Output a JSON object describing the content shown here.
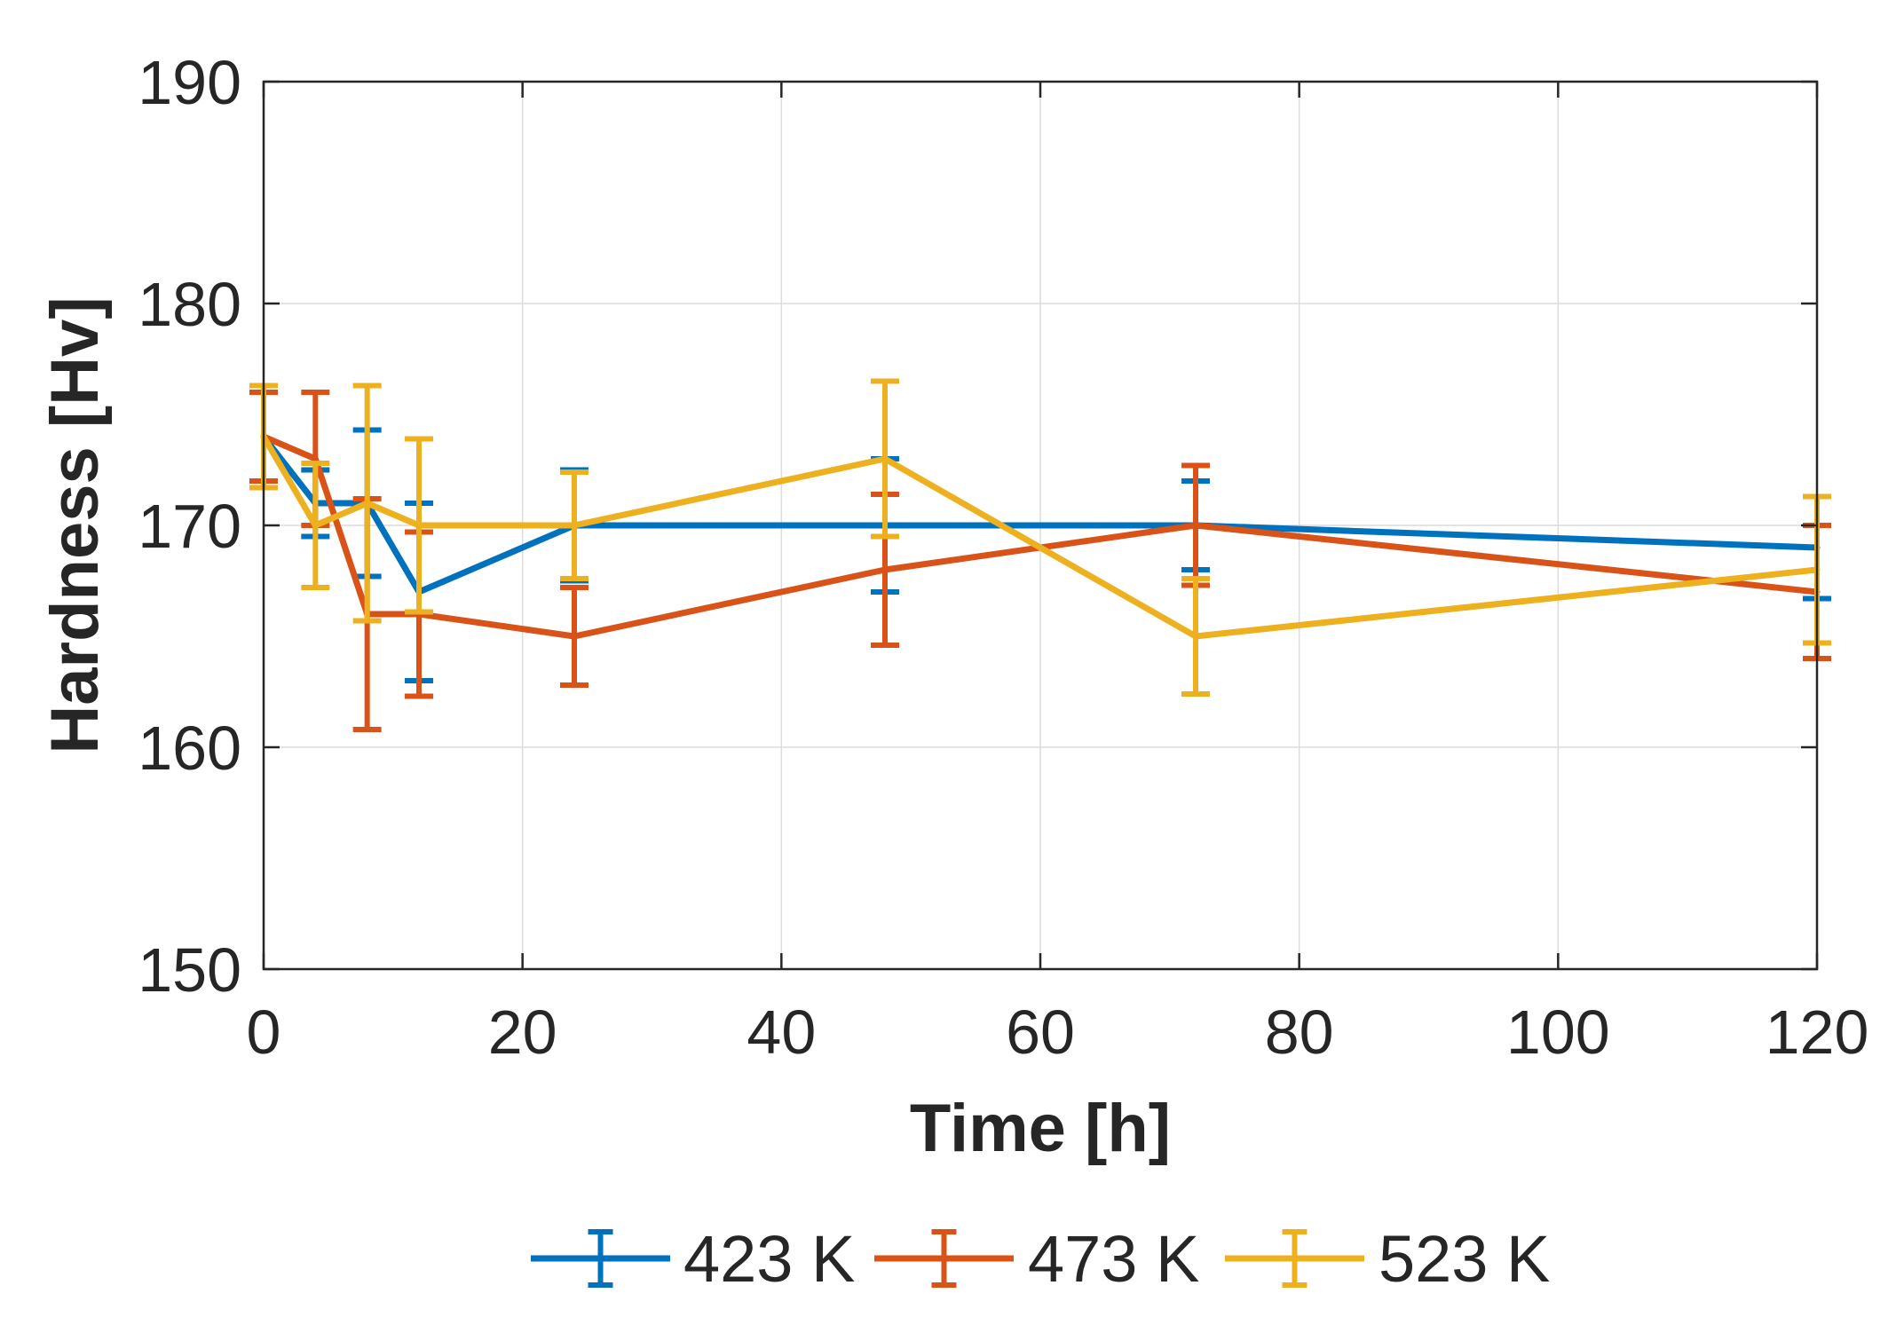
{
  "chart_data": {
    "type": "line",
    "title": "",
    "xlabel": "Time [h]",
    "ylabel": "Hardness [Hv]",
    "xlim": [
      0,
      120
    ],
    "ylim": [
      150,
      190
    ],
    "xticks": [
      0,
      20,
      40,
      60,
      80,
      100,
      120
    ],
    "yticks": [
      150,
      160,
      170,
      180,
      190
    ],
    "grid": true,
    "legend_position": "bottom",
    "x": [
      0,
      4,
      8,
      12,
      24,
      48,
      72,
      120
    ],
    "series": [
      {
        "name": "423 K",
        "color": "#0072BD",
        "values": [
          174,
          171,
          171,
          167,
          170,
          170,
          170,
          169
        ],
        "err_low": [
          2,
          1.5,
          3.3,
          4,
          2.5,
          3,
          2,
          2.3
        ],
        "err_high": [
          2,
          1.5,
          3.3,
          4,
          2.5,
          3,
          2,
          2.3
        ]
      },
      {
        "name": "473 K",
        "color": "#D95319",
        "values": [
          174,
          173,
          166,
          166,
          165,
          168,
          170,
          167
        ],
        "err_low": [
          2,
          3,
          5.2,
          3.7,
          2.2,
          3.4,
          2.7,
          3
        ],
        "err_high": [
          2,
          3,
          5.2,
          3.7,
          2.2,
          3.4,
          2.7,
          3
        ]
      },
      {
        "name": "523 K",
        "color": "#EDB120",
        "values": [
          174,
          170,
          171,
          170,
          170,
          173,
          165,
          168
        ],
        "err_low": [
          2.3,
          2.8,
          5.3,
          3.9,
          2.4,
          3.5,
          2.6,
          3.3
        ],
        "err_high": [
          2.3,
          2.8,
          5.3,
          3.9,
          2.4,
          3.5,
          2.6,
          3.3
        ]
      }
    ]
  }
}
